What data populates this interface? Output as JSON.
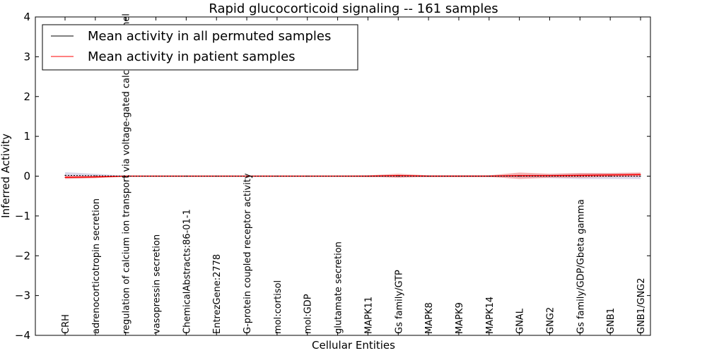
{
  "chart_data": {
    "type": "line",
    "title": "Rapid glucocorticoid signaling -- 161 samples",
    "xlabel": "Cellular Entities",
    "ylabel": "Inferred Activity",
    "ylim": [
      -4,
      4
    ],
    "yticks": [
      -4,
      -3,
      -2,
      -1,
      0,
      1,
      2,
      3,
      4
    ],
    "ytick_labels": [
      "−4",
      "−3",
      "−2",
      "−1",
      "0",
      "1",
      "2",
      "3",
      "4"
    ],
    "grid": false,
    "legend_position": "top-left",
    "categories": [
      "CRH",
      "adrenocorticotropin secretion",
      "regulation of calcium ion transport via voltage-gated calcium channel",
      "vasopressin secretion",
      "ChemicalAbstracts:86-01-1",
      "EntrezGene:2778",
      "G-protein coupled receptor activity",
      "mol:cortisol",
      "mol:GDP",
      "glutamate secretion",
      "MAPK11",
      "Gs family/GTP",
      "MAPK8",
      "MAPK9",
      "MAPK14",
      "GNAL",
      "GNG2",
      "Gs family/GDP/Gbeta gamma",
      "GNB1",
      "GNB1/GNG2"
    ],
    "series": [
      {
        "name": "Mean activity in all permuted samples",
        "color": "#000000",
        "values": [
          0.02,
          0.01,
          0.0,
          0.0,
          0.0,
          0.0,
          0.0,
          0.0,
          0.0,
          0.0,
          0.0,
          0.0,
          0.0,
          0.0,
          0.0,
          0.0,
          0.0,
          0.0,
          0.0,
          0.0
        ],
        "band": [
          0.08,
          0.05,
          0.01,
          0.01,
          0.01,
          0.01,
          0.01,
          0.01,
          0.01,
          0.01,
          0.02,
          0.03,
          0.02,
          0.02,
          0.02,
          0.04,
          0.05,
          0.07,
          0.07,
          0.07
        ],
        "band_color": "#b8b8d8"
      },
      {
        "name": "Mean activity in patient samples",
        "color": "#ff0000",
        "values": [
          -0.03,
          -0.02,
          0.0,
          0.0,
          0.0,
          0.0,
          0.0,
          0.0,
          0.0,
          0.0,
          0.0,
          0.01,
          0.0,
          0.0,
          0.0,
          0.01,
          0.01,
          0.02,
          0.03,
          0.04
        ],
        "band": [
          0.04,
          0.03,
          0.01,
          0.01,
          0.01,
          0.01,
          0.01,
          0.01,
          0.01,
          0.01,
          0.02,
          0.05,
          0.02,
          0.02,
          0.02,
          0.08,
          0.05,
          0.06,
          0.05,
          0.05
        ],
        "band_color": "#f08080"
      }
    ]
  }
}
